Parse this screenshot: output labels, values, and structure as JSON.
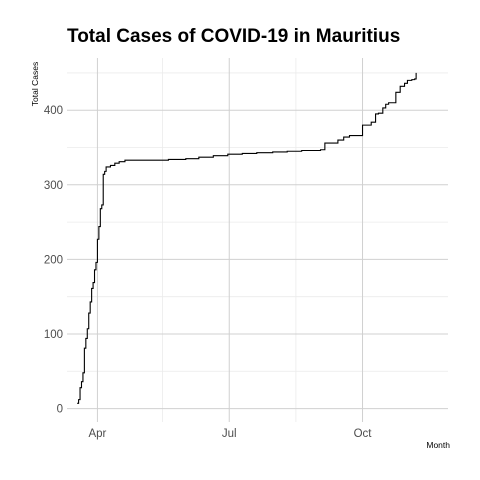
{
  "chart_data": {
    "type": "line",
    "title": "Total Cases of COVID-19 in Mauritius",
    "xlabel": "Month",
    "ylabel": "Total Cases",
    "x_tick_labels": [
      "Apr",
      "Jul",
      "Oct"
    ],
    "x_tick_dates": [
      "2020-04-01",
      "2020-07-01",
      "2020-10-01"
    ],
    "x_minor_dates": [
      "2020-05-16",
      "2020-08-16"
    ],
    "xlim": [
      "2020-03-11",
      "2020-11-29"
    ],
    "y_ticks": [
      0,
      100,
      200,
      300,
      400
    ],
    "y_minor": [
      50,
      150,
      250,
      350,
      450
    ],
    "ylim": [
      -18,
      470
    ],
    "grid": true,
    "line_color": "#000000",
    "series": [
      {
        "x": [
          "2020-03-18",
          "2020-03-19",
          "2020-03-20",
          "2020-03-21",
          "2020-03-22",
          "2020-03-23",
          "2020-03-24",
          "2020-03-25",
          "2020-03-26",
          "2020-03-27",
          "2020-03-28",
          "2020-03-29",
          "2020-03-30",
          "2020-03-31",
          "2020-04-01",
          "2020-04-02",
          "2020-04-03",
          "2020-04-04",
          "2020-04-05",
          "2020-04-06",
          "2020-04-07",
          "2020-04-08",
          "2020-04-10",
          "2020-04-13",
          "2020-04-16",
          "2020-04-20",
          "2020-04-25",
          "2020-05-01",
          "2020-05-10",
          "2020-05-20",
          "2020-06-01",
          "2020-06-10",
          "2020-06-20",
          "2020-06-30",
          "2020-07-10",
          "2020-07-20",
          "2020-07-31",
          "2020-08-10",
          "2020-08-20",
          "2020-08-31",
          "2020-09-02",
          "2020-09-05",
          "2020-09-10",
          "2020-09-14",
          "2020-09-18",
          "2020-09-22",
          "2020-09-25",
          "2020-09-30",
          "2020-10-01",
          "2020-10-05",
          "2020-10-07",
          "2020-10-10",
          "2020-10-12",
          "2020-10-15",
          "2020-10-17",
          "2020-10-19",
          "2020-10-22",
          "2020-10-24",
          "2020-10-27",
          "2020-10-30",
          "2020-11-01",
          "2020-11-04",
          "2020-11-06",
          "2020-11-07"
        ],
        "y": [
          7,
          12,
          28,
          36,
          48,
          81,
          94,
          107,
          128,
          143,
          161,
          169,
          186,
          196,
          227,
          244,
          268,
          273,
          314,
          318,
          324,
          324,
          326,
          329,
          331,
          333,
          333,
          333,
          333,
          334,
          335,
          337,
          339,
          341,
          342,
          343,
          344,
          345,
          346,
          346,
          347,
          356,
          356,
          360,
          364,
          366,
          366,
          366,
          380,
          380,
          384,
          395,
          396,
          403,
          408,
          410,
          410,
          424,
          432,
          436,
          440,
          441,
          442,
          450
        ]
      }
    ]
  }
}
